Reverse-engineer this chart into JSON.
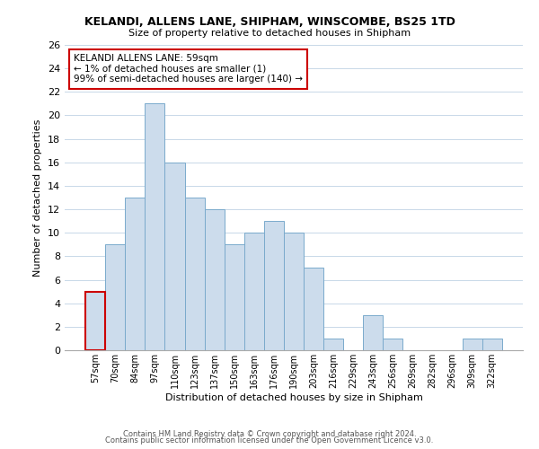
{
  "title1": "KELANDI, ALLENS LANE, SHIPHAM, WINSCOMBE, BS25 1TD",
  "title2": "Size of property relative to detached houses in Shipham",
  "xlabel": "Distribution of detached houses by size in Shipham",
  "ylabel": "Number of detached properties",
  "bar_labels": [
    "57sqm",
    "70sqm",
    "84sqm",
    "97sqm",
    "110sqm",
    "123sqm",
    "137sqm",
    "150sqm",
    "163sqm",
    "176sqm",
    "190sqm",
    "203sqm",
    "216sqm",
    "229sqm",
    "243sqm",
    "256sqm",
    "269sqm",
    "282sqm",
    "296sqm",
    "309sqm",
    "322sqm"
  ],
  "bar_values": [
    5,
    9,
    13,
    21,
    16,
    13,
    12,
    9,
    10,
    11,
    10,
    7,
    1,
    0,
    3,
    1,
    0,
    0,
    0,
    1,
    1
  ],
  "bar_color": "#ccdcec",
  "bar_edge_color": "#7aaacc",
  "highlight_bar_index": 0,
  "highlight_bar_edge_color": "#cc0000",
  "annotation_title": "KELANDI ALLENS LANE: 59sqm",
  "annotation_line1": "← 1% of detached houses are smaller (1)",
  "annotation_line2": "99% of semi-detached houses are larger (140) →",
  "annotation_box_edge_color": "#cc0000",
  "annotation_box_face_color": "#ffffff",
  "ylim": [
    0,
    26
  ],
  "yticks": [
    0,
    2,
    4,
    6,
    8,
    10,
    12,
    14,
    16,
    18,
    20,
    22,
    24,
    26
  ],
  "footer_line1": "Contains HM Land Registry data © Crown copyright and database right 2024.",
  "footer_line2": "Contains public sector information licensed under the Open Government Licence v3.0.",
  "background_color": "#ffffff",
  "grid_color": "#c8d8e8"
}
